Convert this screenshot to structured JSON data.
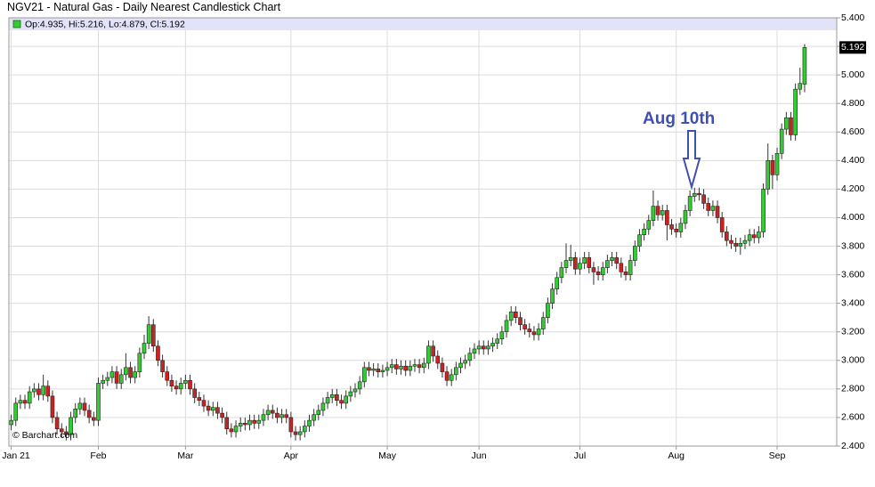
{
  "chart_data": {
    "type": "candlestick",
    "title": "NGV21 - Natural Gas - Daily Nearest Candlestick Chart",
    "legend_text": "Op:4.935, Hi:5.216, Lo:4.879, Cl:5.192",
    "annotation": "Aug 10th",
    "watermark": "© Barchart.com",
    "last_price": 5.192,
    "up_color": "#33cc33",
    "down_color": "#cc2222",
    "grid": true,
    "xlim": [
      -0.5,
      180
    ],
    "xticks": [
      {
        "value": 0,
        "label": "Jan 21"
      },
      {
        "value": 19,
        "label": "Feb"
      },
      {
        "value": 38,
        "label": "Mar"
      },
      {
        "value": 61,
        "label": "Apr"
      },
      {
        "value": 82,
        "label": "May"
      },
      {
        "value": 102,
        "label": "Jun"
      },
      {
        "value": 124,
        "label": "Jul"
      },
      {
        "value": 145,
        "label": "Aug"
      },
      {
        "value": 167,
        "label": "Sep"
      }
    ],
    "ylim": [
      2.4,
      5.4
    ],
    "yticks": [
      {
        "value": 2.4,
        "label": "2.400"
      },
      {
        "value": 2.6,
        "label": "2.600"
      },
      {
        "value": 2.8,
        "label": "2.800"
      },
      {
        "value": 3.0,
        "label": "3.000"
      },
      {
        "value": 3.2,
        "label": "3.200"
      },
      {
        "value": 3.4,
        "label": "3.400"
      },
      {
        "value": 3.6,
        "label": "3.600"
      },
      {
        "value": 3.8,
        "label": "3.800"
      },
      {
        "value": 4.0,
        "label": "4.000"
      },
      {
        "value": 4.2,
        "label": "4.200"
      },
      {
        "value": 4.4,
        "label": "4.400"
      },
      {
        "value": 4.6,
        "label": "4.600"
      },
      {
        "value": 4.8,
        "label": "4.800"
      },
      {
        "value": 5.0,
        "label": "5.000"
      },
      {
        "value": 5.2,
        "label": "5.200"
      },
      {
        "value": 5.4,
        "label": "5.400"
      }
    ],
    "open": [
      2.55,
      2.58,
      2.7,
      2.72,
      2.7,
      2.78,
      2.8,
      2.76,
      2.82,
      2.75,
      2.6,
      2.52,
      2.5,
      2.48,
      2.6,
      2.66,
      2.7,
      2.65,
      2.6,
      2.58,
      2.84,
      2.86,
      2.88,
      2.92,
      2.84,
      2.9,
      2.95,
      2.88,
      2.92,
      3.05,
      3.12,
      3.25,
      3.1,
      3.0,
      2.92,
      2.86,
      2.82,
      2.8,
      2.84,
      2.86,
      2.8,
      2.74,
      2.72,
      2.68,
      2.65,
      2.67,
      2.63,
      2.6,
      2.52,
      2.5,
      2.54,
      2.56,
      2.55,
      2.58,
      2.56,
      2.58,
      2.62,
      2.65,
      2.63,
      2.6,
      2.62,
      2.6,
      2.5,
      2.48,
      2.5,
      2.54,
      2.58,
      2.62,
      2.65,
      2.7,
      2.74,
      2.76,
      2.72,
      2.7,
      2.75,
      2.78,
      2.8,
      2.85,
      2.95,
      2.93,
      2.94,
      2.92,
      2.93,
      2.95,
      2.97,
      2.94,
      2.96,
      2.93,
      2.96,
      2.97,
      2.95,
      2.98,
      3.1,
      3.03,
      2.98,
      2.92,
      2.86,
      2.9,
      2.95,
      2.98,
      3.0,
      3.05,
      3.08,
      3.1,
      3.08,
      3.1,
      3.12,
      3.15,
      3.2,
      3.28,
      3.34,
      3.3,
      3.25,
      3.22,
      3.2,
      3.18,
      3.22,
      3.3,
      3.4,
      3.5,
      3.58,
      3.65,
      3.7,
      3.72,
      3.64,
      3.68,
      3.72,
      3.65,
      3.62,
      3.6,
      3.65,
      3.7,
      3.72,
      3.68,
      3.62,
      3.6,
      3.7,
      3.8,
      3.88,
      3.92,
      3.98,
      4.08,
      4.02,
      4.05,
      3.95,
      3.92,
      3.9,
      3.96,
      4.05,
      4.15,
      4.17,
      4.16,
      4.1,
      4.05,
      4.08,
      4.0,
      3.9,
      3.84,
      3.82,
      3.8,
      3.82,
      3.84,
      3.88,
      3.86,
      3.9,
      4.2,
      4.4,
      4.3,
      4.45,
      4.62,
      4.7,
      4.58,
      4.9,
      4.935
    ],
    "high": [
      2.62,
      2.74,
      2.76,
      2.76,
      2.82,
      2.84,
      2.84,
      2.9,
      2.86,
      2.79,
      2.64,
      2.56,
      2.54,
      2.64,
      2.7,
      2.74,
      2.74,
      2.69,
      2.64,
      2.88,
      2.9,
      2.92,
      2.96,
      2.96,
      2.94,
      3.05,
      2.99,
      2.96,
      3.09,
      3.18,
      3.31,
      3.29,
      3.14,
      3.04,
      2.96,
      2.9,
      2.86,
      2.88,
      2.9,
      2.9,
      2.84,
      2.78,
      2.76,
      2.72,
      2.71,
      2.71,
      2.67,
      2.64,
      2.56,
      2.58,
      2.6,
      2.6,
      2.62,
      2.62,
      2.62,
      2.66,
      2.69,
      2.69,
      2.67,
      2.66,
      2.66,
      2.64,
      2.54,
      2.54,
      2.58,
      2.62,
      2.66,
      2.69,
      2.74,
      2.78,
      2.8,
      2.8,
      2.76,
      2.79,
      2.82,
      2.84,
      2.89,
      2.99,
      2.99,
      2.98,
      2.98,
      2.97,
      2.99,
      3.01,
      3.01,
      3.0,
      3.0,
      3.0,
      3.01,
      3.01,
      3.02,
      3.14,
      3.14,
      3.07,
      3.02,
      2.96,
      2.94,
      2.99,
      3.02,
      3.04,
      3.09,
      3.12,
      3.14,
      3.14,
      3.14,
      3.16,
      3.19,
      3.24,
      3.32,
      3.38,
      3.38,
      3.34,
      3.29,
      3.26,
      3.24,
      3.26,
      3.34,
      3.44,
      3.54,
      3.62,
      3.69,
      3.82,
      3.81,
      3.76,
      3.72,
      3.76,
      3.76,
      3.69,
      3.66,
      3.69,
      3.74,
      3.76,
      3.76,
      3.72,
      3.66,
      3.74,
      3.84,
      3.92,
      3.96,
      4.02,
      4.19,
      4.12,
      4.09,
      4.09,
      3.99,
      3.96,
      4.0,
      4.09,
      4.19,
      4.21,
      4.21,
      4.2,
      4.14,
      4.12,
      4.12,
      4.04,
      3.94,
      3.88,
      3.86,
      3.86,
      3.88,
      3.92,
      3.92,
      3.94,
      4.24,
      4.52,
      4.44,
      4.49,
      4.66,
      4.74,
      4.74,
      4.94,
      5.05,
      5.216
    ],
    "low": [
      2.51,
      2.54,
      2.66,
      2.66,
      2.66,
      2.74,
      2.72,
      2.72,
      2.71,
      2.56,
      2.48,
      2.46,
      2.44,
      2.44,
      2.56,
      2.62,
      2.61,
      2.56,
      2.54,
      2.54,
      2.8,
      2.82,
      2.84,
      2.8,
      2.8,
      2.86,
      2.84,
      2.84,
      2.88,
      3.01,
      3.08,
      3.06,
      2.96,
      2.88,
      2.82,
      2.78,
      2.76,
      2.76,
      2.8,
      2.76,
      2.7,
      2.68,
      2.64,
      2.61,
      2.61,
      2.59,
      2.56,
      2.48,
      2.46,
      2.46,
      2.5,
      2.51,
      2.51,
      2.52,
      2.52,
      2.54,
      2.58,
      2.59,
      2.56,
      2.56,
      2.56,
      2.46,
      2.44,
      2.44,
      2.46,
      2.5,
      2.54,
      2.58,
      2.61,
      2.66,
      2.7,
      2.68,
      2.66,
      2.66,
      2.71,
      2.74,
      2.76,
      2.81,
      2.89,
      2.89,
      2.88,
      2.88,
      2.89,
      2.91,
      2.9,
      2.9,
      2.89,
      2.89,
      2.92,
      2.91,
      2.91,
      2.94,
      2.99,
      2.94,
      2.88,
      2.82,
      2.82,
      2.86,
      2.91,
      2.94,
      2.96,
      3.01,
      3.04,
      3.04,
      3.04,
      3.06,
      3.08,
      3.11,
      3.16,
      3.24,
      3.26,
      3.21,
      3.18,
      3.16,
      3.14,
      3.14,
      3.18,
      3.26,
      3.36,
      3.46,
      3.54,
      3.61,
      3.66,
      3.6,
      3.6,
      3.64,
      3.61,
      3.53,
      3.56,
      3.56,
      3.61,
      3.66,
      3.64,
      3.58,
      3.56,
      3.56,
      3.66,
      3.76,
      3.84,
      3.88,
      3.94,
      3.98,
      3.98,
      3.84,
      3.88,
      3.86,
      3.86,
      3.92,
      4.01,
      4.11,
      4.12,
      4.06,
      4.01,
      4.01,
      3.96,
      3.86,
      3.8,
      3.78,
      3.76,
      3.74,
      3.78,
      3.8,
      3.82,
      3.82,
      3.86,
      4.16,
      4.2,
      4.26,
      4.41,
      4.58,
      4.54,
      4.54,
      4.86,
      4.879
    ],
    "close": [
      2.58,
      2.7,
      2.72,
      2.7,
      2.78,
      2.8,
      2.76,
      2.82,
      2.75,
      2.6,
      2.52,
      2.5,
      2.48,
      2.6,
      2.66,
      2.7,
      2.65,
      2.6,
      2.58,
      2.84,
      2.86,
      2.88,
      2.92,
      2.84,
      2.9,
      2.95,
      2.88,
      2.92,
      3.05,
      3.12,
      3.25,
      3.1,
      3.0,
      2.92,
      2.86,
      2.82,
      2.8,
      2.84,
      2.86,
      2.8,
      2.74,
      2.72,
      2.68,
      2.65,
      2.67,
      2.63,
      2.6,
      2.52,
      2.5,
      2.54,
      2.56,
      2.55,
      2.58,
      2.56,
      2.58,
      2.62,
      2.65,
      2.63,
      2.6,
      2.62,
      2.6,
      2.5,
      2.48,
      2.5,
      2.54,
      2.58,
      2.62,
      2.65,
      2.7,
      2.74,
      2.76,
      2.72,
      2.7,
      2.75,
      2.78,
      2.8,
      2.85,
      2.95,
      2.93,
      2.94,
      2.92,
      2.93,
      2.95,
      2.97,
      2.94,
      2.96,
      2.93,
      2.96,
      2.97,
      2.95,
      2.98,
      3.1,
      3.03,
      2.98,
      2.92,
      2.86,
      2.9,
      2.95,
      2.98,
      3.0,
      3.05,
      3.08,
      3.1,
      3.08,
      3.1,
      3.12,
      3.15,
      3.2,
      3.28,
      3.34,
      3.3,
      3.25,
      3.22,
      3.2,
      3.18,
      3.22,
      3.3,
      3.4,
      3.5,
      3.58,
      3.65,
      3.7,
      3.72,
      3.64,
      3.68,
      3.72,
      3.65,
      3.62,
      3.6,
      3.65,
      3.7,
      3.72,
      3.68,
      3.62,
      3.6,
      3.7,
      3.8,
      3.88,
      3.92,
      3.98,
      4.08,
      4.02,
      4.05,
      3.95,
      3.92,
      3.9,
      3.96,
      4.05,
      4.15,
      4.17,
      4.16,
      4.1,
      4.05,
      4.08,
      4.0,
      3.9,
      3.84,
      3.82,
      3.8,
      3.82,
      3.84,
      3.88,
      3.86,
      3.9,
      4.2,
      4.4,
      4.3,
      4.45,
      4.62,
      4.7,
      4.58,
      4.9,
      4.94,
      5.192
    ]
  }
}
